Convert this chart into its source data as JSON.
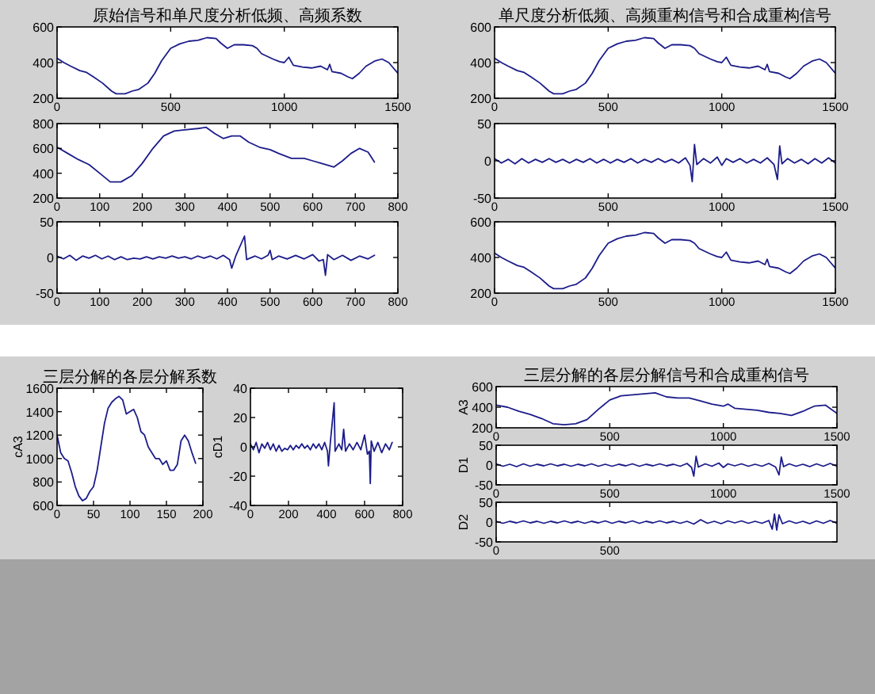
{
  "chart_data": [
    {
      "type": "line",
      "title": "原始信号和单尺度分析低频、高频系数",
      "xlim": [
        0,
        1500
      ],
      "ylim": [
        200,
        600
      ],
      "xticks": [
        0,
        500,
        1000,
        1500
      ],
      "yticks": [
        200,
        400,
        600
      ],
      "series": [
        {
          "color": "#1c1c8a",
          "x": [
            0,
            30,
            60,
            100,
            130,
            160,
            200,
            240,
            260,
            300,
            330,
            360,
            400,
            430,
            460,
            500,
            540,
            580,
            620,
            660,
            700,
            720,
            750,
            780,
            820,
            860,
            880,
            900,
            950,
            980,
            1000,
            1020,
            1040,
            1080,
            1120,
            1160,
            1190,
            1200,
            1210,
            1250,
            1280,
            1300,
            1330,
            1360,
            1400,
            1430,
            1460,
            1480,
            1500
          ],
          "values": [
            425,
            400,
            380,
            355,
            345,
            320,
            285,
            240,
            225,
            225,
            240,
            250,
            285,
            340,
            410,
            480,
            505,
            520,
            525,
            540,
            535,
            510,
            480,
            500,
            500,
            495,
            480,
            450,
            420,
            405,
            400,
            430,
            385,
            375,
            370,
            380,
            360,
            390,
            350,
            340,
            320,
            310,
            340,
            380,
            410,
            420,
            400,
            370,
            340
          ]
        }
      ]
    },
    {
      "type": "line",
      "xlim": [
        0,
        800
      ],
      "ylim": [
        200,
        800
      ],
      "xticks": [
        0,
        100,
        200,
        300,
        400,
        500,
        600,
        700,
        800
      ],
      "yticks": [
        200,
        400,
        600,
        800
      ],
      "series": [
        {
          "color": "#1c1c8a",
          "x": [
            0,
            25,
            50,
            75,
            100,
            125,
            150,
            175,
            200,
            225,
            250,
            275,
            300,
            330,
            350,
            370,
            390,
            410,
            430,
            450,
            475,
            500,
            520,
            550,
            580,
            600,
            620,
            650,
            670,
            690,
            710,
            730,
            745
          ],
          "values": [
            610,
            560,
            510,
            470,
            400,
            330,
            330,
            380,
            480,
            600,
            700,
            740,
            750,
            760,
            770,
            720,
            680,
            700,
            700,
            650,
            610,
            590,
            560,
            520,
            520,
            500,
            480,
            450,
            500,
            560,
            600,
            570,
            490
          ]
        }
      ]
    },
    {
      "type": "line",
      "xlim": [
        0,
        800
      ],
      "ylim": [
        -50,
        50
      ],
      "xticks": [
        0,
        100,
        200,
        300,
        400,
        500,
        600,
        700,
        800
      ],
      "yticks": [
        -50,
        0,
        50
      ],
      "series": [
        {
          "color": "#1c1c8a",
          "x": [
            0,
            15,
            30,
            45,
            60,
            75,
            90,
            105,
            120,
            135,
            150,
            165,
            180,
            195,
            210,
            225,
            240,
            255,
            270,
            285,
            300,
            315,
            330,
            345,
            360,
            375,
            390,
            405,
            410,
            420,
            440,
            445,
            465,
            480,
            495,
            500,
            505,
            520,
            540,
            560,
            580,
            600,
            615,
            625,
            630,
            635,
            650,
            670,
            690,
            710,
            730,
            745
          ],
          "values": [
            2,
            -2,
            3,
            -4,
            2,
            -1,
            3,
            -2,
            2,
            -3,
            1,
            -3,
            -1,
            -2,
            1,
            -2,
            1,
            -1,
            2,
            -1,
            1,
            -2,
            2,
            -1,
            2,
            -2,
            3,
            -3,
            -15,
            3,
            30,
            -3,
            2,
            -2,
            3,
            10,
            -3,
            2,
            -2,
            3,
            -2,
            4,
            -5,
            -3,
            -25,
            4,
            -3,
            3,
            -4,
            2,
            -2,
            3
          ]
        }
      ]
    },
    {
      "type": "line",
      "title": "单尺度分析低频、高频重构信号和合成重构信号",
      "xlim": [
        0,
        1500
      ],
      "ylim": [
        200,
        600
      ],
      "xticks": [
        0,
        500,
        1000,
        1500
      ],
      "yticks": [
        200,
        400,
        600
      ],
      "series": [
        {
          "color": "#1c1c8a",
          "x": [
            0,
            30,
            60,
            100,
            130,
            160,
            200,
            240,
            260,
            300,
            330,
            360,
            400,
            430,
            460,
            500,
            540,
            580,
            620,
            660,
            700,
            720,
            750,
            780,
            820,
            860,
            880,
            900,
            950,
            980,
            1000,
            1020,
            1040,
            1080,
            1120,
            1160,
            1190,
            1200,
            1210,
            1250,
            1280,
            1300,
            1330,
            1360,
            1400,
            1430,
            1460,
            1480,
            1500
          ],
          "values": [
            425,
            400,
            380,
            355,
            345,
            320,
            285,
            240,
            225,
            225,
            240,
            250,
            285,
            340,
            410,
            480,
            505,
            520,
            525,
            540,
            535,
            510,
            480,
            500,
            500,
            495,
            480,
            450,
            420,
            405,
            400,
            430,
            385,
            375,
            370,
            380,
            360,
            390,
            350,
            340,
            320,
            310,
            340,
            380,
            410,
            420,
            400,
            370,
            340
          ]
        }
      ]
    },
    {
      "type": "line",
      "xlim": [
        0,
        1500
      ],
      "ylim": [
        -50,
        50
      ],
      "xticks": [
        0,
        500,
        1000,
        1500
      ],
      "yticks": [
        -50,
        0,
        50
      ],
      "series": [
        {
          "color": "#1c1c8a",
          "x": [
            0,
            30,
            60,
            90,
            120,
            150,
            180,
            210,
            240,
            270,
            300,
            330,
            360,
            390,
            420,
            450,
            480,
            510,
            540,
            570,
            600,
            630,
            660,
            690,
            720,
            750,
            780,
            810,
            840,
            860,
            870,
            880,
            890,
            920,
            950,
            980,
            1000,
            1020,
            1050,
            1080,
            1110,
            1140,
            1170,
            1200,
            1230,
            1245,
            1255,
            1265,
            1290,
            1320,
            1350,
            1380,
            1410,
            1440,
            1470,
            1500
          ],
          "values": [
            3,
            -3,
            2,
            -4,
            3,
            -3,
            2,
            -2,
            3,
            -2,
            2,
            -3,
            2,
            -2,
            3,
            -3,
            2,
            -3,
            2,
            -2,
            3,
            -3,
            2,
            -2,
            3,
            -2,
            2,
            -3,
            4,
            -6,
            -28,
            22,
            -5,
            3,
            -3,
            5,
            -6,
            3,
            -2,
            3,
            -3,
            2,
            -3,
            4,
            -5,
            -25,
            20,
            -4,
            3,
            -3,
            2,
            -4,
            3,
            -3,
            4,
            -3
          ]
        }
      ]
    },
    {
      "type": "line",
      "xlim": [
        0,
        1500
      ],
      "ylim": [
        200,
        600
      ],
      "xticks": [
        0,
        500,
        1000,
        1500
      ],
      "yticks": [
        200,
        400,
        600
      ],
      "series": [
        {
          "color": "#1c1c8a",
          "x": [
            0,
            30,
            60,
            100,
            130,
            160,
            200,
            240,
            260,
            300,
            330,
            360,
            400,
            430,
            460,
            500,
            540,
            580,
            620,
            660,
            700,
            720,
            750,
            780,
            820,
            860,
            880,
            900,
            950,
            980,
            1000,
            1020,
            1040,
            1080,
            1120,
            1160,
            1190,
            1200,
            1210,
            1250,
            1280,
            1300,
            1330,
            1360,
            1400,
            1430,
            1460,
            1480,
            1500
          ],
          "values": [
            425,
            400,
            380,
            355,
            345,
            320,
            285,
            240,
            225,
            225,
            240,
            250,
            285,
            340,
            410,
            480,
            505,
            520,
            525,
            540,
            535,
            510,
            480,
            500,
            500,
            495,
            480,
            450,
            420,
            405,
            400,
            430,
            385,
            375,
            370,
            380,
            360,
            390,
            350,
            340,
            320,
            310,
            340,
            380,
            410,
            420,
            400,
            370,
            340
          ]
        }
      ]
    },
    {
      "type": "line",
      "title": "三层分解的各层分解系数",
      "ylabel": "cA3",
      "xlim": [
        0,
        200
      ],
      "ylim": [
        600,
        1600
      ],
      "xticks": [
        0,
        50,
        100,
        150,
        200
      ],
      "yticks": [
        600,
        800,
        1000,
        1200,
        1400,
        1600
      ],
      "series": [
        {
          "color": "#1c1c8a",
          "x": [
            0,
            5,
            10,
            15,
            20,
            25,
            30,
            35,
            40,
            45,
            50,
            55,
            60,
            65,
            70,
            75,
            80,
            85,
            90,
            95,
            100,
            105,
            110,
            115,
            120,
            125,
            130,
            135,
            140,
            145,
            150,
            155,
            160,
            165,
            170,
            175,
            180,
            185,
            190
          ],
          "values": [
            1200,
            1050,
            1000,
            980,
            880,
            760,
            680,
            640,
            660,
            720,
            760,
            900,
            1100,
            1300,
            1430,
            1480,
            1510,
            1530,
            1500,
            1380,
            1400,
            1420,
            1350,
            1230,
            1200,
            1100,
            1050,
            1000,
            1000,
            950,
            980,
            900,
            900,
            950,
            1150,
            1200,
            1150,
            1050,
            960
          ]
        }
      ]
    },
    {
      "type": "line",
      "ylabel": "cD1",
      "xlim": [
        0,
        800
      ],
      "ylim": [
        -40,
        40
      ],
      "xticks": [
        0,
        200,
        400,
        600,
        800
      ],
      "yticks": [
        -40,
        -20,
        0,
        20,
        40
      ],
      "series": [
        {
          "color": "#1c1c8a",
          "x": [
            0,
            15,
            30,
            45,
            60,
            75,
            90,
            105,
            120,
            135,
            150,
            165,
            180,
            195,
            210,
            225,
            240,
            255,
            270,
            285,
            300,
            315,
            330,
            345,
            360,
            375,
            390,
            405,
            410,
            420,
            440,
            445,
            465,
            480,
            490,
            500,
            520,
            540,
            560,
            580,
            600,
            615,
            625,
            630,
            635,
            650,
            670,
            690,
            710,
            730,
            745
          ],
          "values": [
            2,
            -2,
            3,
            -4,
            2,
            -1,
            3,
            -2,
            2,
            -3,
            1,
            -3,
            -1,
            -2,
            1,
            -2,
            1,
            -1,
            2,
            -1,
            1,
            -2,
            2,
            -1,
            2,
            -2,
            3,
            -3,
            -13,
            3,
            30,
            -3,
            2,
            -2,
            12,
            -3,
            2,
            -2,
            3,
            -2,
            8,
            -5,
            -3,
            -25,
            4,
            -3,
            3,
            -4,
            2,
            -2,
            3
          ]
        }
      ]
    },
    {
      "type": "line",
      "title": "三层分解的各层分解信号和合成重构信号",
      "ylabel": "A3",
      "xlim": [
        0,
        1500
      ],
      "ylim": [
        200,
        600
      ],
      "xticks": [
        0,
        500,
        1000,
        1500
      ],
      "yticks": [
        200,
        400,
        600
      ],
      "series": [
        {
          "color": "#1c1c8a",
          "x": [
            0,
            50,
            100,
            150,
            200,
            250,
            300,
            350,
            400,
            450,
            500,
            550,
            600,
            650,
            700,
            750,
            800,
            850,
            900,
            950,
            1000,
            1020,
            1050,
            1100,
            1150,
            1200,
            1250,
            1300,
            1350,
            1400,
            1450,
            1500
          ],
          "values": [
            420,
            400,
            360,
            330,
            290,
            240,
            230,
            240,
            280,
            380,
            470,
            510,
            520,
            530,
            540,
            500,
            490,
            490,
            460,
            430,
            410,
            430,
            390,
            380,
            370,
            350,
            340,
            320,
            360,
            410,
            420,
            340
          ]
        }
      ]
    },
    {
      "type": "line",
      "ylabel": "D1",
      "xlim": [
        0,
        1500
      ],
      "ylim": [
        -50,
        50
      ],
      "xticks": [
        0,
        500,
        1000,
        1500
      ],
      "yticks": [
        -50,
        0,
        50
      ],
      "series": [
        {
          "color": "#1c1c8a",
          "x": [
            0,
            30,
            60,
            90,
            120,
            150,
            180,
            210,
            240,
            270,
            300,
            330,
            360,
            390,
            420,
            450,
            480,
            510,
            540,
            570,
            600,
            630,
            660,
            690,
            720,
            750,
            780,
            810,
            840,
            860,
            870,
            880,
            890,
            920,
            950,
            980,
            1000,
            1020,
            1050,
            1080,
            1110,
            1140,
            1170,
            1200,
            1230,
            1245,
            1255,
            1265,
            1290,
            1320,
            1350,
            1380,
            1410,
            1440,
            1470,
            1500
          ],
          "values": [
            3,
            -3,
            2,
            -4,
            3,
            -3,
            2,
            -2,
            3,
            -2,
            2,
            -3,
            2,
            -2,
            3,
            -3,
            2,
            -3,
            2,
            -2,
            3,
            -3,
            2,
            -2,
            3,
            -2,
            2,
            -3,
            4,
            -6,
            -28,
            22,
            -5,
            3,
            -3,
            5,
            -6,
            3,
            -2,
            3,
            -3,
            2,
            -3,
            4,
            -5,
            -25,
            20,
            -4,
            3,
            -3,
            2,
            -4,
            3,
            -3,
            4,
            -3
          ]
        }
      ]
    },
    {
      "type": "line",
      "ylabel": "D2",
      "xlim": [
        0,
        1500
      ],
      "ylim": [
        -50,
        50
      ],
      "xticks": [
        0,
        500
      ],
      "yticks": [
        -50,
        0,
        50
      ],
      "series": [
        {
          "color": "#1c1c8a",
          "x": [
            0,
            30,
            60,
            90,
            120,
            150,
            180,
            210,
            240,
            270,
            300,
            330,
            360,
            390,
            420,
            450,
            480,
            510,
            540,
            570,
            600,
            630,
            660,
            690,
            720,
            750,
            780,
            810,
            840,
            870,
            900,
            930,
            960,
            990,
            1020,
            1050,
            1080,
            1110,
            1140,
            1170,
            1200,
            1215,
            1225,
            1235,
            1245,
            1260,
            1290,
            1320,
            1350,
            1380,
            1410,
            1440,
            1470,
            1500
          ],
          "values": [
            2,
            -3,
            2,
            -2,
            3,
            -2,
            2,
            -3,
            2,
            -2,
            3,
            -2,
            2,
            -3,
            2,
            -2,
            3,
            -3,
            2,
            -2,
            3,
            -3,
            2,
            -2,
            3,
            -2,
            2,
            -3,
            2,
            -5,
            6,
            -3,
            2,
            -4,
            3,
            -2,
            3,
            -3,
            2,
            -3,
            4,
            -18,
            20,
            -20,
            18,
            -4,
            3,
            -3,
            2,
            -4,
            3,
            -3,
            4,
            -3
          ]
        }
      ]
    }
  ]
}
